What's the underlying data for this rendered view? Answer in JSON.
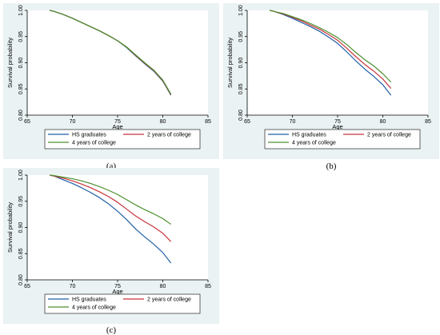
{
  "chart_data": [
    {
      "type": "line",
      "caption": "(a)",
      "xlabel": "Age",
      "ylabel": "Survival probability",
      "xlim": [
        65,
        85
      ],
      "ylim": [
        0.8,
        1.0
      ],
      "xticks": [
        "65",
        "70",
        "75",
        "80",
        "85"
      ],
      "yticks": [
        "0.80",
        "0.85",
        "0.90",
        "0.95",
        "1.00"
      ],
      "legend": "bottom",
      "series": [
        {
          "name": "HS graduates",
          "color": "#1f5fa6",
          "x": [
            67.5,
            68,
            69,
            70,
            71,
            72,
            73,
            74,
            75,
            76,
            77,
            78,
            79,
            80,
            80.9
          ],
          "y": [
            1.0,
            0.998,
            0.992,
            0.985,
            0.977,
            0.969,
            0.961,
            0.952,
            0.942,
            0.929,
            0.913,
            0.898,
            0.884,
            0.865,
            0.838
          ]
        },
        {
          "name": "2 years of college",
          "color": "#c8343b",
          "x": [
            67.5,
            68,
            69,
            70,
            71,
            72,
            73,
            74,
            75,
            76,
            77,
            78,
            79,
            80,
            80.9
          ],
          "y": [
            1.0,
            0.998,
            0.992,
            0.985,
            0.977,
            0.969,
            0.961,
            0.952,
            0.942,
            0.93,
            0.914,
            0.899,
            0.885,
            0.866,
            0.839
          ]
        },
        {
          "name": "4 years of college",
          "color": "#4a8f2c",
          "x": [
            67.5,
            68,
            69,
            70,
            71,
            72,
            73,
            74,
            75,
            76,
            77,
            78,
            79,
            80,
            80.9
          ],
          "y": [
            1.0,
            0.998,
            0.992,
            0.985,
            0.977,
            0.969,
            0.961,
            0.952,
            0.942,
            0.93,
            0.915,
            0.9,
            0.886,
            0.867,
            0.84
          ]
        }
      ]
    },
    {
      "type": "line",
      "caption": "(b)",
      "xlabel": "Age",
      "ylabel": "Survival probability",
      "xlim": [
        65,
        85
      ],
      "ylim": [
        0.8,
        1.0
      ],
      "xticks": [
        "65",
        "70",
        "75",
        "80",
        "85"
      ],
      "yticks": [
        "0.80",
        "0.85",
        "0.90",
        "0.95",
        "1.00"
      ],
      "legend": "bottom",
      "series": [
        {
          "name": "HS graduates",
          "color": "#1f5fa6",
          "x": [
            67.5,
            68,
            69,
            70,
            71,
            72,
            73,
            74,
            75,
            76,
            77,
            78,
            79,
            80,
            80.9
          ],
          "y": [
            1.0,
            0.998,
            0.992,
            0.985,
            0.977,
            0.969,
            0.96,
            0.949,
            0.937,
            0.921,
            0.904,
            0.888,
            0.874,
            0.858,
            0.838
          ]
        },
        {
          "name": "2 years of college",
          "color": "#c8343b",
          "x": [
            67.5,
            68,
            69,
            70,
            71,
            72,
            73,
            74,
            75,
            76,
            77,
            78,
            79,
            80,
            80.9
          ],
          "y": [
            1.0,
            0.998,
            0.993,
            0.987,
            0.98,
            0.972,
            0.964,
            0.954,
            0.943,
            0.928,
            0.912,
            0.897,
            0.884,
            0.869,
            0.851
          ]
        },
        {
          "name": "4 years of college",
          "color": "#4a8f2c",
          "x": [
            67.5,
            68,
            69,
            70,
            71,
            72,
            73,
            74,
            75,
            76,
            77,
            78,
            79,
            80,
            80.9
          ],
          "y": [
            1.0,
            0.998,
            0.994,
            0.988,
            0.982,
            0.975,
            0.967,
            0.958,
            0.948,
            0.935,
            0.92,
            0.906,
            0.894,
            0.879,
            0.863
          ]
        }
      ]
    },
    {
      "type": "line",
      "caption": "(c)",
      "xlabel": "Age",
      "ylabel": "Survival probability",
      "xlim": [
        65,
        85
      ],
      "ylim": [
        0.8,
        1.0
      ],
      "xticks": [
        "65",
        "70",
        "75",
        "80",
        "85"
      ],
      "yticks": [
        "0.80",
        "0.85",
        "0.90",
        "0.95",
        "1.00"
      ],
      "legend": "bottom",
      "series": [
        {
          "name": "HS graduates",
          "color": "#1f5fa6",
          "x": [
            67.5,
            68,
            69,
            70,
            71,
            72,
            73,
            74,
            75,
            76,
            77,
            78,
            79,
            80,
            80.9
          ],
          "y": [
            1.0,
            0.998,
            0.991,
            0.984,
            0.976,
            0.967,
            0.957,
            0.945,
            0.931,
            0.915,
            0.897,
            0.882,
            0.868,
            0.852,
            0.832
          ]
        },
        {
          "name": "2 years of college",
          "color": "#c8343b",
          "x": [
            67.5,
            68,
            69,
            70,
            71,
            72,
            73,
            74,
            75,
            76,
            77,
            78,
            79,
            80,
            80.9
          ],
          "y": [
            1.0,
            0.998,
            0.994,
            0.989,
            0.983,
            0.976,
            0.968,
            0.959,
            0.948,
            0.935,
            0.922,
            0.911,
            0.901,
            0.889,
            0.873
          ]
        },
        {
          "name": "4 years of college",
          "color": "#4a8f2c",
          "x": [
            67.5,
            68,
            69,
            70,
            71,
            72,
            73,
            74,
            75,
            76,
            77,
            78,
            79,
            80,
            80.9
          ],
          "y": [
            1.0,
            0.999,
            0.996,
            0.993,
            0.989,
            0.984,
            0.978,
            0.971,
            0.963,
            0.953,
            0.943,
            0.934,
            0.926,
            0.917,
            0.906
          ]
        }
      ]
    }
  ]
}
